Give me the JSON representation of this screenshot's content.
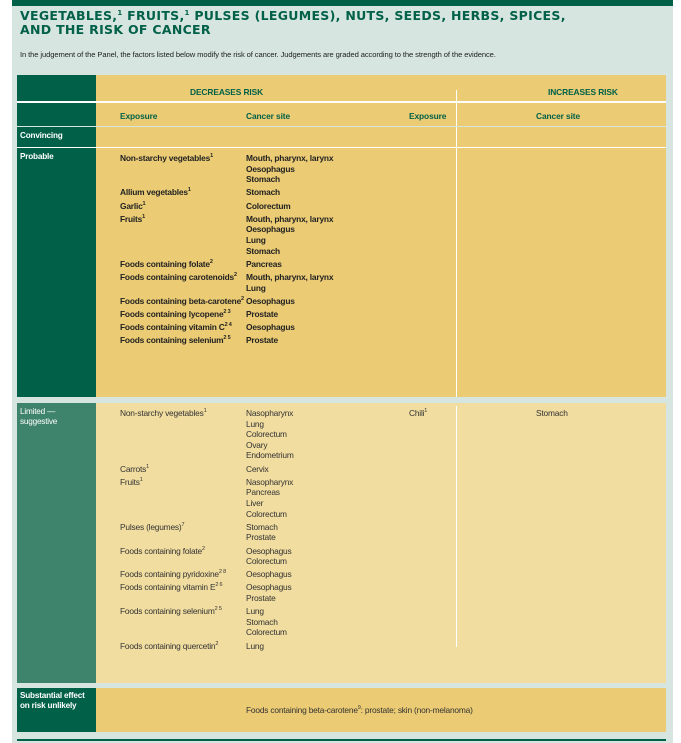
{
  "title_line1": "VEGETABLES,",
  "title_sup1": "1",
  "title_part2": " FRUITS,",
  "title_sup2": "1",
  "title_part3": " PULSES (LEGUMES), NUTS, SEEDS, HERBS, SPICES,",
  "title_line2": "AND THE RISK OF CANCER",
  "intro": "In the judgement of the Panel, the factors listed below modify the risk of cancer. Judgements are graded according to the strength of the evidence.",
  "headers": {
    "decreases": "DECREASES RISK",
    "increases": "INCREASES RISK",
    "exposure": "Exposure",
    "cancer_site": "Cancer site"
  },
  "colors": {
    "dark_green": "#006048",
    "mid_green": "#3e836b",
    "yellow": "#ebcb74",
    "light_yellow": "#f1dda0",
    "panel": "#d6e5df"
  },
  "rows": {
    "convincing": {
      "label": "Convincing"
    },
    "probable": {
      "label": "Probable",
      "decreases": [
        {
          "exposure": "Non-starchy vegetables",
          "sup": "1",
          "sites": [
            "Mouth, pharynx, larynx",
            "Oesophagus",
            "Stomach"
          ]
        },
        {
          "exposure": "Allium vegetables",
          "sup": "1",
          "sites": [
            "Stomach"
          ]
        },
        {
          "exposure": "Garlic",
          "sup": "1",
          "sites": [
            "Colorectum"
          ]
        },
        {
          "exposure": "Fruits",
          "sup": "1",
          "sites": [
            "Mouth, pharynx, larynx",
            "Oesophagus",
            "Lung",
            "Stomach"
          ]
        },
        {
          "exposure": "Foods containing folate",
          "sup": "2",
          "sites": [
            "Pancreas"
          ]
        },
        {
          "exposure": "Foods containing carotenoids",
          "sup": "2",
          "sites": [
            "Mouth, pharynx, larynx",
            "Lung"
          ]
        },
        {
          "exposure": "Foods containing beta-carotene",
          "sup": "2",
          "sites": [
            "Oesophagus"
          ]
        },
        {
          "exposure": "Foods containing lycopene",
          "sup": "2 3",
          "sites": [
            "Prostate"
          ]
        },
        {
          "exposure": "Foods containing vitamin C",
          "sup": "2 4",
          "sites": [
            "Oesophagus"
          ]
        },
        {
          "exposure": "Foods containing selenium",
          "sup": "2 5",
          "sites": [
            "Prostate"
          ]
        }
      ]
    },
    "limited": {
      "label": "Limited — suggestive",
      "decreases": [
        {
          "exposure": "Non-starchy vegetables",
          "sup": "1",
          "sites": [
            "Nasopharynx",
            "Lung",
            "Colorectum",
            "Ovary",
            "Endometrium"
          ]
        },
        {
          "exposure": "Carrots",
          "sup": "1",
          "sites": [
            "Cervix"
          ]
        },
        {
          "exposure": "Fruits",
          "sup": "1",
          "sites": [
            "Nasopharynx",
            "Pancreas",
            "Liver",
            "Colorectum"
          ]
        },
        {
          "exposure": "Pulses (legumes)",
          "sup": "7",
          "sites": [
            "Stomach",
            "Prostate"
          ]
        },
        {
          "exposure": "Foods containing folate",
          "sup": "2",
          "sites": [
            "Oesophagus",
            "Colorectum"
          ]
        },
        {
          "exposure": "Foods containing pyridoxine",
          "sup": "2 8",
          "sites": [
            "Oesophagus"
          ]
        },
        {
          "exposure": "Foods containing vitamin E",
          "sup": "2 6",
          "sites": [
            "Oesophagus",
            "Prostate"
          ]
        },
        {
          "exposure": "Foods containing selenium",
          "sup": "2 5",
          "sites": [
            "Lung",
            "Stomach",
            "Colorectum"
          ]
        },
        {
          "exposure": "Foods containing quercetin",
          "sup": "2",
          "sites": [
            "Lung"
          ]
        }
      ],
      "increases": [
        {
          "exposure": "Chili",
          "sup": "1",
          "sites": [
            "Stomach"
          ]
        }
      ]
    },
    "substantial": {
      "label": "Substantial effect on risk unlikely",
      "text": "Foods containing beta-carotene",
      "sup": "9",
      "text_rest": ": prostate; skin (non-melanoma)"
    }
  }
}
